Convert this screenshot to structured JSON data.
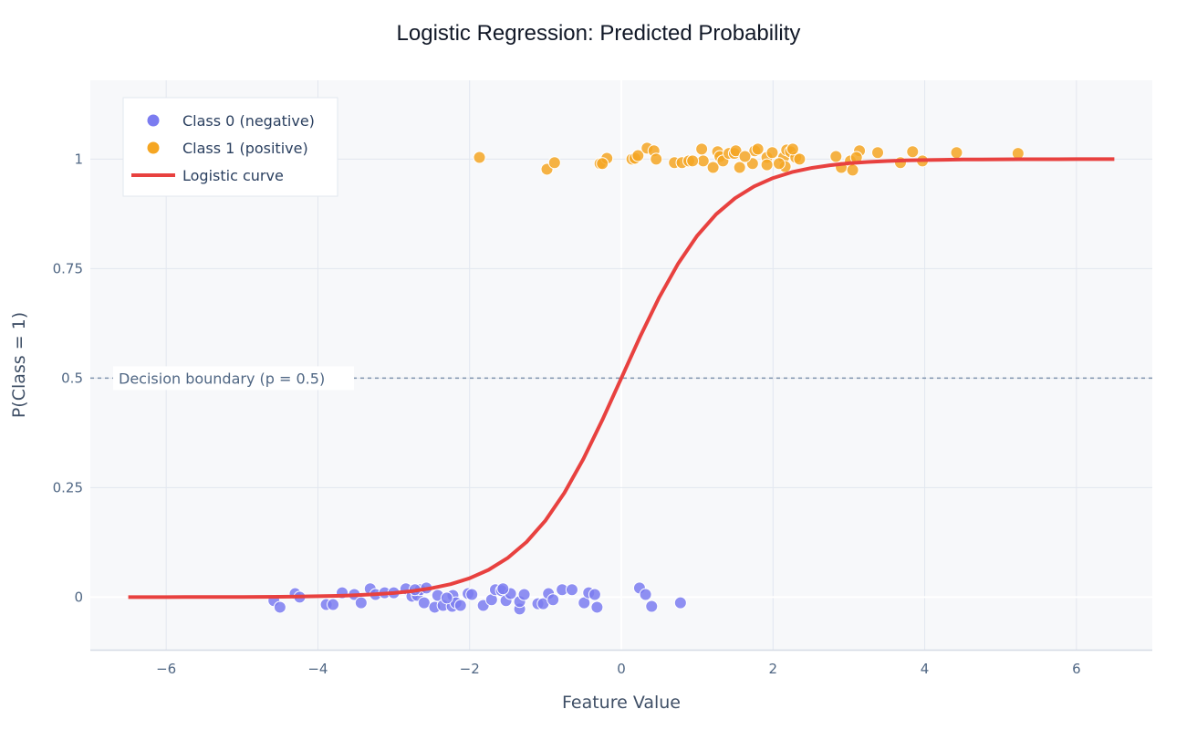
{
  "chart_data": {
    "type": "scatter",
    "title": "Logistic Regression: Predicted Probability",
    "xlabel": "Feature Value",
    "ylabel": "P(Class = 1)",
    "xlim": [
      -7,
      7
    ],
    "ylim": [
      -0.12,
      1.18
    ],
    "grid": true,
    "legend_position": "top-left",
    "x_ticks": [
      -6,
      -4,
      -2,
      0,
      2,
      4,
      6
    ],
    "x_tick_labels": [
      "−6",
      "−4",
      "−2",
      "0",
      "2",
      "4",
      "6"
    ],
    "y_ticks": [
      0,
      0.25,
      0.5,
      0.75,
      1
    ],
    "y_tick_labels": [
      "0",
      "0.25",
      "0.5",
      "0.75",
      "1"
    ],
    "annotation": {
      "text": "Decision boundary (p = 0.5)",
      "y": 0.5
    },
    "series": [
      {
        "name": "Class 0 (negative)",
        "type": "scatter",
        "color": "#7b7cf0",
        "points": [
          [
            -4.58,
            -0.008
          ],
          [
            -4.5,
            -0.023
          ],
          [
            -4.3,
            0.008
          ],
          [
            -4.24,
            0
          ],
          [
            -3.89,
            -0.017
          ],
          [
            -3.8,
            -0.017
          ],
          [
            -3.68,
            0.01
          ],
          [
            -3.52,
            0.006
          ],
          [
            -3.43,
            -0.013
          ],
          [
            -3.31,
            0.019
          ],
          [
            -3.24,
            0.006
          ],
          [
            -3.12,
            0.01
          ],
          [
            -3,
            0.01
          ],
          [
            -2.84,
            0.019
          ],
          [
            -2.76,
            0.002
          ],
          [
            -2.69,
            0.004
          ],
          [
            -2.65,
            0.017
          ],
          [
            -2.6,
            -0.013
          ],
          [
            -2.57,
            0.021
          ],
          [
            -2.46,
            -0.023
          ],
          [
            -2.42,
            0.004
          ],
          [
            -2.35,
            -0.019
          ],
          [
            -2.23,
            -0.021
          ],
          [
            -2.22,
            0.004
          ],
          [
            -2.18,
            -0.013
          ],
          [
            -2.12,
            -0.019
          ],
          [
            -2.02,
            0.008
          ],
          [
            -1.97,
            0.006
          ],
          [
            -1.82,
            -0.019
          ],
          [
            -1.71,
            -0.006
          ],
          [
            -1.66,
            0.017
          ],
          [
            -1.58,
            0.015
          ],
          [
            -1.52,
            -0.008
          ],
          [
            -1.46,
            0.008
          ],
          [
            -1.34,
            -0.027
          ],
          [
            -1.34,
            -0.01
          ],
          [
            -1.28,
            0.006
          ],
          [
            -1.1,
            -0.015
          ],
          [
            -1.03,
            -0.015
          ],
          [
            -0.96,
            0.008
          ],
          [
            -0.9,
            -0.006
          ],
          [
            -0.78,
            0.017
          ],
          [
            -0.65,
            0.017
          ],
          [
            -0.49,
            -0.013
          ],
          [
            -0.43,
            0.01
          ],
          [
            -0.35,
            0.006
          ],
          [
            -0.32,
            -0.023
          ],
          [
            0.24,
            0.021
          ],
          [
            0.32,
            0.006
          ],
          [
            0.4,
            -0.021
          ],
          [
            0.78,
            -0.013
          ],
          [
            -2.72,
            0.017
          ],
          [
            -2.3,
            -0.002
          ],
          [
            -1.56,
            0.019
          ]
        ]
      },
      {
        "name": "Class 1 (positive)",
        "type": "scatter",
        "color": "#f5a623",
        "points": [
          [
            -1.87,
            1.004
          ],
          [
            -0.98,
            0.977
          ],
          [
            -0.88,
            0.992
          ],
          [
            -0.28,
            0.99
          ],
          [
            -0.19,
            1.002
          ],
          [
            -0.25,
            0.99
          ],
          [
            0.14,
            1
          ],
          [
            0.18,
            1.002
          ],
          [
            0.22,
            1.008
          ],
          [
            0.34,
            1.025
          ],
          [
            0.7,
            0.992
          ],
          [
            0.8,
            0.992
          ],
          [
            0.89,
            0.996
          ],
          [
            1.06,
            1.023
          ],
          [
            1.08,
            0.996
          ],
          [
            1.21,
            0.981
          ],
          [
            1.27,
            1.017
          ],
          [
            1.3,
            1.006
          ],
          [
            1.34,
            0.996
          ],
          [
            1.42,
            1.013
          ],
          [
            1.49,
            1.013
          ],
          [
            1.51,
            1.019
          ],
          [
            1.56,
            0.981
          ],
          [
            1.73,
            0.99
          ],
          [
            1.76,
            1.019
          ],
          [
            1.8,
            1.023
          ],
          [
            1.92,
            1.004
          ],
          [
            1.92,
            0.987
          ],
          [
            1.99,
            1.015
          ],
          [
            2.14,
            1.004
          ],
          [
            2.16,
            0.983
          ],
          [
            2.18,
            1.021
          ],
          [
            2.23,
            1.017
          ],
          [
            2.3,
            1.004
          ],
          [
            2.35,
            1
          ],
          [
            2.83,
            1.006
          ],
          [
            2.9,
            0.981
          ],
          [
            3.02,
            0.996
          ],
          [
            3.05,
            0.975
          ],
          [
            3.14,
            1.019
          ],
          [
            3.38,
            1.015
          ],
          [
            3.84,
            1.017
          ],
          [
            3.97,
            0.996
          ],
          [
            4.42,
            1.015
          ],
          [
            5.23,
            1.013
          ],
          [
            0.43,
            1.019
          ],
          [
            0.94,
            0.996
          ],
          [
            1.63,
            1.006
          ],
          [
            2.08,
            0.99
          ],
          [
            2.26,
            1.023
          ],
          [
            3.68,
            0.992
          ],
          [
            3.1,
            1.004
          ],
          [
            0.46,
            1
          ]
        ]
      },
      {
        "name": "Logistic curve",
        "type": "line",
        "color": "#e8413f",
        "model": {
          "coef": 1.55,
          "intercept": 0,
          "x_range": [
            -6.5,
            6.5
          ],
          "step": 0.25
        }
      }
    ]
  },
  "colors": {
    "plot_bg": "#f7f8fa",
    "grid": "#e2e7ef",
    "zeroline": "#ffffff",
    "boundary_line": "#7f93ad"
  }
}
